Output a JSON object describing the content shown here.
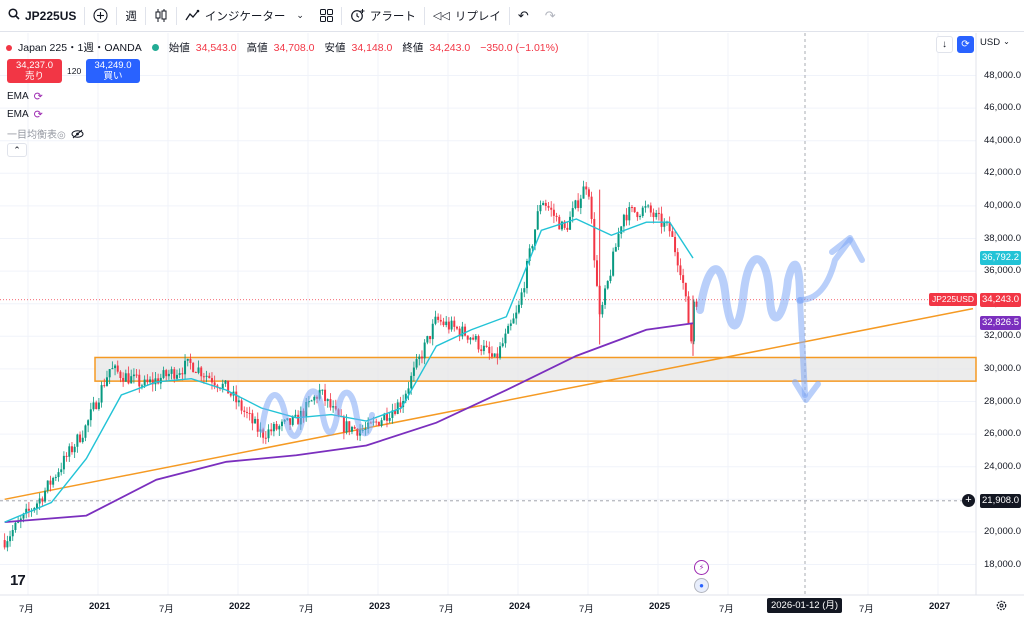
{
  "toolbar": {
    "symbol": "JP225US",
    "interval": "週",
    "indicators_label": "インジケーター",
    "alert_label": "アラート",
    "replay_label": "リプレイ"
  },
  "legend": {
    "title": "Japan 225・1週・OANDA",
    "open_label": "始値",
    "open": "34,543.0",
    "high_label": "高値",
    "high": "34,708.0",
    "low_label": "安値",
    "low": "34,148.0",
    "close_label": "終値",
    "close": "34,243.0",
    "change": "−350.0 (−1.01%)"
  },
  "trade": {
    "sell_price": "34,237.0",
    "sell_label": "売り",
    "spread": "120",
    "buy_price": "34,249.0",
    "buy_label": "買い"
  },
  "indicators": [
    {
      "name": "EMA"
    },
    {
      "name": "EMA"
    },
    {
      "name": "一目均衡表◎"
    }
  ],
  "price_axis": {
    "currency": "USD",
    "labels": [
      "48,000.0",
      "46,000.0",
      "44,000.0",
      "42,000.0",
      "40,000.0",
      "38,000.0",
      "36,000.0",
      "34,000.0",
      "32,000.0",
      "30,000.0",
      "28,000.0",
      "26,000.0",
      "24,000.0",
      "22,000.0",
      "20,000.0",
      "18,000.0"
    ],
    "ema_fast": "36,792.2",
    "last": "34,243.0",
    "last_symbol": "JP225USD",
    "ema_slow": "32,826.5",
    "crosshair": "21,908.0"
  },
  "time_axis": {
    "labels": [
      {
        "t": "7月",
        "bold": false
      },
      {
        "t": "2021",
        "bold": true
      },
      {
        "t": "7月",
        "bold": false
      },
      {
        "t": "2022",
        "bold": true
      },
      {
        "t": "7月",
        "bold": false
      },
      {
        "t": "2023",
        "bold": true
      },
      {
        "t": "7月",
        "bold": false
      },
      {
        "t": "2024",
        "bold": true
      },
      {
        "t": "7月",
        "bold": false
      },
      {
        "t": "2025",
        "bold": true
      },
      {
        "t": "7月",
        "bold": false
      },
      {
        "t": "7月",
        "bold": false
      },
      {
        "t": "2027",
        "bold": true
      }
    ],
    "crosshair_date": "2026-01-12 (月)"
  },
  "colors": {
    "up": "#089981",
    "down": "#f23645",
    "ema_fast": "#22c3d6",
    "ema_slow": "#7b2fbe",
    "trendline": "#f59a23",
    "zone_border": "#f59a23",
    "drawing": "#7fa8f5"
  },
  "chart_data": {
    "type": "candlestick",
    "title": "Japan 225・1週・OANDA",
    "xlabel": "",
    "ylabel": "",
    "ylim": [
      17000,
      49500
    ],
    "x_range": [
      "2020-05",
      "2027-04"
    ],
    "series": [
      {
        "name": "EMA",
        "color": "#22c3d6",
        "points": [
          [
            "2020-05",
            20600
          ],
          [
            "2020-09",
            21800
          ],
          [
            "2020-12",
            24500
          ],
          [
            "2021-03",
            28400
          ],
          [
            "2021-06",
            29200
          ],
          [
            "2021-09",
            29400
          ],
          [
            "2021-12",
            28700
          ],
          [
            "2022-03",
            27600
          ],
          [
            "2022-06",
            27000
          ],
          [
            "2022-09",
            27200
          ],
          [
            "2022-12",
            26800
          ],
          [
            "2023-03",
            27600
          ],
          [
            "2023-06",
            31400
          ],
          [
            "2023-09",
            32400
          ],
          [
            "2023-12",
            33200
          ],
          [
            "2024-03",
            38500
          ],
          [
            "2024-06",
            39200
          ],
          [
            "2024-09",
            38200
          ],
          [
            "2024-12",
            39000
          ],
          [
            "2025-02",
            39000
          ],
          [
            "2025-04",
            36800
          ]
        ]
      },
      {
        "name": "EMA",
        "color": "#7b2fbe",
        "points": [
          [
            "2020-05",
            20600
          ],
          [
            "2020-12",
            21000
          ],
          [
            "2021-06",
            23200
          ],
          [
            "2021-12",
            24300
          ],
          [
            "2022-06",
            24700
          ],
          [
            "2022-12",
            25300
          ],
          [
            "2023-06",
            26700
          ],
          [
            "2023-12",
            28700
          ],
          [
            "2024-06",
            30800
          ],
          [
            "2024-12",
            32400
          ],
          [
            "2025-04",
            32800
          ]
        ]
      }
    ],
    "price_path": [
      [
        "2020-05",
        19500
      ],
      [
        "2020-08",
        22000
      ],
      [
        "2020-12",
        26500
      ],
      [
        "2021-02",
        30000
      ],
      [
        "2021-05",
        29000
      ],
      [
        "2021-09",
        30300
      ],
      [
        "2021-12",
        28800
      ],
      [
        "2022-03",
        26000
      ],
      [
        "2022-06",
        26800
      ],
      [
        "2022-08",
        28600
      ],
      [
        "2022-10",
        26500
      ],
      [
        "2022-12",
        26200
      ],
      [
        "2023-03",
        28000
      ],
      [
        "2023-06",
        33000
      ],
      [
        "2023-09",
        32000
      ],
      [
        "2023-11",
        30500
      ],
      [
        "2024-01",
        33500
      ],
      [
        "2024-03",
        40500
      ],
      [
        "2024-05",
        38500
      ],
      [
        "2024-07",
        41600
      ],
      [
        "2024-08",
        33000
      ],
      [
        "2024-10",
        39500
      ],
      [
        "2024-12",
        39800
      ],
      [
        "2025-02",
        38500
      ],
      [
        "2025-03",
        36000
      ],
      [
        "2025-04",
        31000
      ],
      [
        "2025-04",
        34243
      ]
    ],
    "zone": {
      "from": "2021-01",
      "y_top": 30700,
      "y_bottom": 29250
    },
    "trendline": [
      [
        "2020-05",
        22000
      ],
      [
        "2027-04",
        33700
      ]
    ],
    "last_price": 34243,
    "crosshair": {
      "price": 21908,
      "date": "2026-01-12"
    }
  }
}
